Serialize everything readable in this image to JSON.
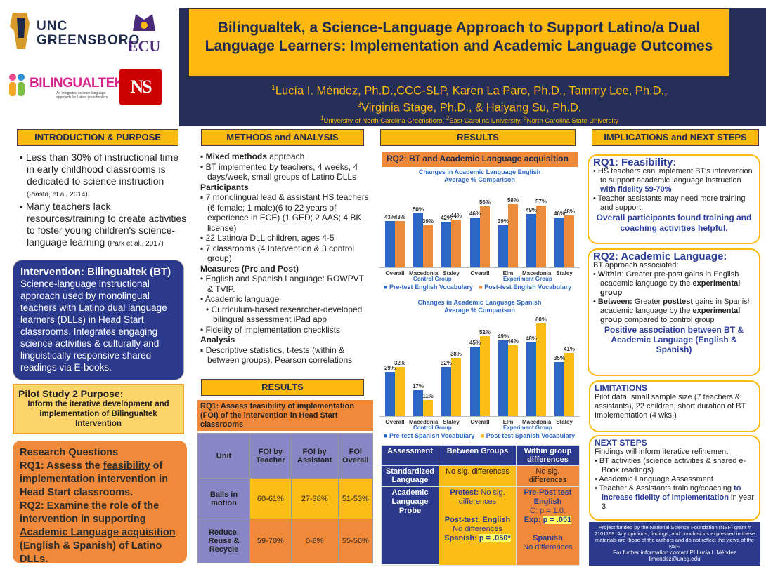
{
  "logos": {
    "uncg": "UNC GREENSBORO",
    "ecu": "ECU",
    "bilingualtek": "BILINGUALTEK",
    "bilingualtek_tagline": "An integrated science-language approach for Latino preschoolers",
    "ncstate": "NS"
  },
  "title": "Bilingualtek, a Science-Language Approach to Support Latino/a Dual Language Learners: Implementation and Academic Language Outcomes",
  "authors_line1": "Lucía I. Méndez, Ph.D.,CCC-SLP, Karen La Paro, Ph.D., Tammy Lee, Ph.D.,",
  "authors_line2": "Virginia Stage, Ph.D., & Haiyang Su, Ph.D.",
  "sup": {
    "a1": "1",
    "a2": "1",
    "a3": "2",
    "a4": "3",
    "a5": "1",
    "f1": "1",
    "f2": "2",
    "f3": "3"
  },
  "affiliations": {
    "f1": "University of North Carolina Greensboro",
    "sep": ", ",
    "f2": "East Carolina University, ",
    "f3": "North Carolina State University"
  },
  "intro": {
    "header": "INTRODUCTION & PURPOSE",
    "b1": "Less than 30% of instructional time in early childhood classrooms is dedicated to science instruction",
    "b1_cite": "(Piasta, et al, 2014).",
    "b2": "Many teachers lack resources/training to create activities to foster young children's science-language learning",
    "b2_cite": "(Park et al., 2017)"
  },
  "intervention": {
    "title": "Intervention: Bilingualtek (BT)",
    "text": "Science-language instructional approach used by monolingual teachers with Latino dual language learners (DLLs) in Head Start classrooms. Integrates engaging science activities & culturally and linguistically responsive shared readings via E-books."
  },
  "pilot": {
    "title": "Pilot Study 2 Purpose:",
    "text": "Inform the iterative development and implementation of Bilingualtek Intervention"
  },
  "rq": {
    "title": "Research Questions",
    "rq1_a": "RQ1: Assess the ",
    "rq1_u": "feasibility",
    "rq1_b": " of implementation intervention in Head Start classrooms.",
    "rq2_a": "RQ2: Examine the role of the intervention in supporting ",
    "rq2_u": "Academic Language acquisition",
    "rq2_b": " (English & Spanish) of Latino DLLs."
  },
  "methods": {
    "header": "METHODS  and ANALYSIS",
    "m1_b": "Mixed methods",
    "m1": " approach",
    "m2": "BT implemented by teachers, 4 weeks, 4 days/week, small groups of Latino DLLs",
    "participants": "Participants",
    "p1": "7 monolingual lead & assistant HS teachers (6 female; 1 male)(6 to 22 years of experience in ECE) (1 GED; 2 AAS; 4 BK license)",
    "p2": "22 Latino/a DLL children, ages 4-5",
    "p3": "7 classrooms (4 Intervention & 3 control group)",
    "measures": "Measures (Pre and Post)",
    "me1": "English and Spanish Language: ROWPVT & TVIP.",
    "me2": "Academic language",
    "me3": "Curriculum-based researcher-developed bilingual assessment iPad app",
    "me4": "Fidelity of implementation checklists",
    "analysis": "Analysis",
    "a1": "Descriptive statistics, t-tests (within & between groups), Pearson correlations"
  },
  "results1": {
    "header": "RESULTS",
    "rq1_title": "RQ1: Assess feasibility of implementation (FOI) of the intervention in Head Start classrooms"
  },
  "foi_table": {
    "head": [
      "Unit",
      "FOI by Teacher",
      "FOI by Assistant",
      "FOI Overall"
    ],
    "rows": [
      [
        "Balls in motion",
        "60-61%",
        "27-38%",
        "51-53%"
      ],
      [
        "Reduce, Reuse & Recycle",
        "59-70%",
        "0-8%",
        "55-56%"
      ]
    ]
  },
  "results2": {
    "header": "RESULTS",
    "rq2_title": "RQ2: BT and Academic Language acquisition"
  },
  "chart_data": [
    {
      "type": "bar",
      "title": "Changes in Academic Language English Average % Comparison",
      "categories": [
        "Overall",
        "Macedonia",
        "Staley",
        "Overall",
        "Elm",
        "Macedonia",
        "Staley"
      ],
      "groups": [
        "Control Group",
        "Experiment Group"
      ],
      "series": [
        {
          "name": "Pre-test English Vocabulary",
          "values": [
            43,
            50,
            42,
            46,
            39,
            49,
            46
          ],
          "color": "#2b67c4"
        },
        {
          "name": "Post-test English Vocabulary",
          "values": [
            43,
            39,
            44,
            56,
            58,
            57,
            48
          ],
          "color": "#ec8b3c"
        }
      ],
      "labels_pre": [
        "43%",
        "50%",
        "42%",
        "46%",
        "39%",
        "49%",
        "46%"
      ],
      "labels_post": [
        "43%",
        "39%",
        "44%",
        "56%",
        "58%",
        "57%",
        "48%"
      ],
      "ylim": [
        0,
        65
      ]
    },
    {
      "type": "bar",
      "title": "Changes in Academic Language Spanish Average % Comparison",
      "categories": [
        "Overall",
        "Macedonia",
        "Staley",
        "Overall",
        "Elm",
        "Macedonia",
        "Staley"
      ],
      "groups": [
        "Control Group",
        "Experiment Group"
      ],
      "series": [
        {
          "name": "Pre-test Spanish Vocabulary",
          "values": [
            29,
            17,
            32,
            45,
            49,
            48,
            35
          ],
          "color": "#2b67c4"
        },
        {
          "name": "Post-test Spanish Vocabulary",
          "values": [
            32,
            11,
            38,
            52,
            46,
            60,
            41
          ],
          "color": "#fdbd17"
        }
      ],
      "labels_pre": [
        "29%",
        "17%",
        "32%",
        "45%",
        "49%",
        "48%",
        "35%"
      ],
      "labels_post": [
        "32%",
        "11%",
        "38%",
        "52%",
        "46%",
        "60%",
        "41%"
      ],
      "ylim": [
        0,
        65
      ]
    }
  ],
  "ra_table": {
    "head": [
      "Assessment",
      "Between  Groups",
      "Within group differences"
    ],
    "r1": [
      "Standardized Language",
      "No sig. differences",
      "No sig. differences"
    ],
    "r2_a": "Academic Language Probe",
    "r2_b1": "Pretest:",
    "r2_b2": " No sig. differences",
    "r2_b3": "Post-test: English",
    "r2_b4": "No differences",
    "r2_b5": "Spanish: ",
    "r2_b6": "p = .050*",
    "r2_c1": "Pre-Post test English",
    "r2_c2": "C: p = 1.0.",
    "r2_c3": "Exp: ",
    "r2_c4": "p = .051",
    "r2_c5": "Spanish",
    "r2_c6": "No differences"
  },
  "impl": {
    "header": "IMPLICATIONS and NEXT STEPS",
    "rq1_t": "RQ1",
    "rq1_t2": ": Feasibility:",
    "i1_a": "HS teachers can implement BT's intervention to support academic language instruction ",
    "i1_b": "with fidelity 59-70%",
    "i2": "Teacher assistants may need more training and support.",
    "i3": "Overall participants found training and coaching activities helpful.",
    "rq2_t": "RQ2",
    "rq2_t2": ": Academic Language:",
    "assoc": "BT approach associated:",
    "w_b": "Within",
    "w": ": Greater pre-post gains in English academic language by the ",
    "w_e": "experimental group",
    "b_b": "Between:",
    "b": " Greater ",
    "b_p": "posttest",
    "b2": " gains in Spanish academic language by the ",
    "b_e": "experimental group",
    "b3": " compared to control group",
    "pos": "Positive association between BT & Academic Language (English & Spanish)"
  },
  "limits": {
    "title": "LIMITATIONS",
    "text": "Pilot data, small sample size (7 teachers & assistants), 22 children, short duration of BT Implementation (4 wks.)"
  },
  "next": {
    "title": "NEXT STEPS",
    "intro": "Findings will inform iterative refinement:",
    "n1": "BT activities (science activities & shared e-Book readings)",
    "n2": "Academic Language Assessment",
    "n3": "Teacher & Assistants training/coaching ",
    "n3_b": "to increase fidelity of implementation",
    "n3_c": " in year 3"
  },
  "funding": {
    "text": "Project funded by the National Science Foundation (NSF) grant # 2101169. Any opinions, findings, and conclusions expressed in these materials are those of the authors and do not reflect the views of the NSF.",
    "contact": "For further information contact  PI Lucia I. Méndez",
    "email": "limendez@uncg.edu"
  }
}
